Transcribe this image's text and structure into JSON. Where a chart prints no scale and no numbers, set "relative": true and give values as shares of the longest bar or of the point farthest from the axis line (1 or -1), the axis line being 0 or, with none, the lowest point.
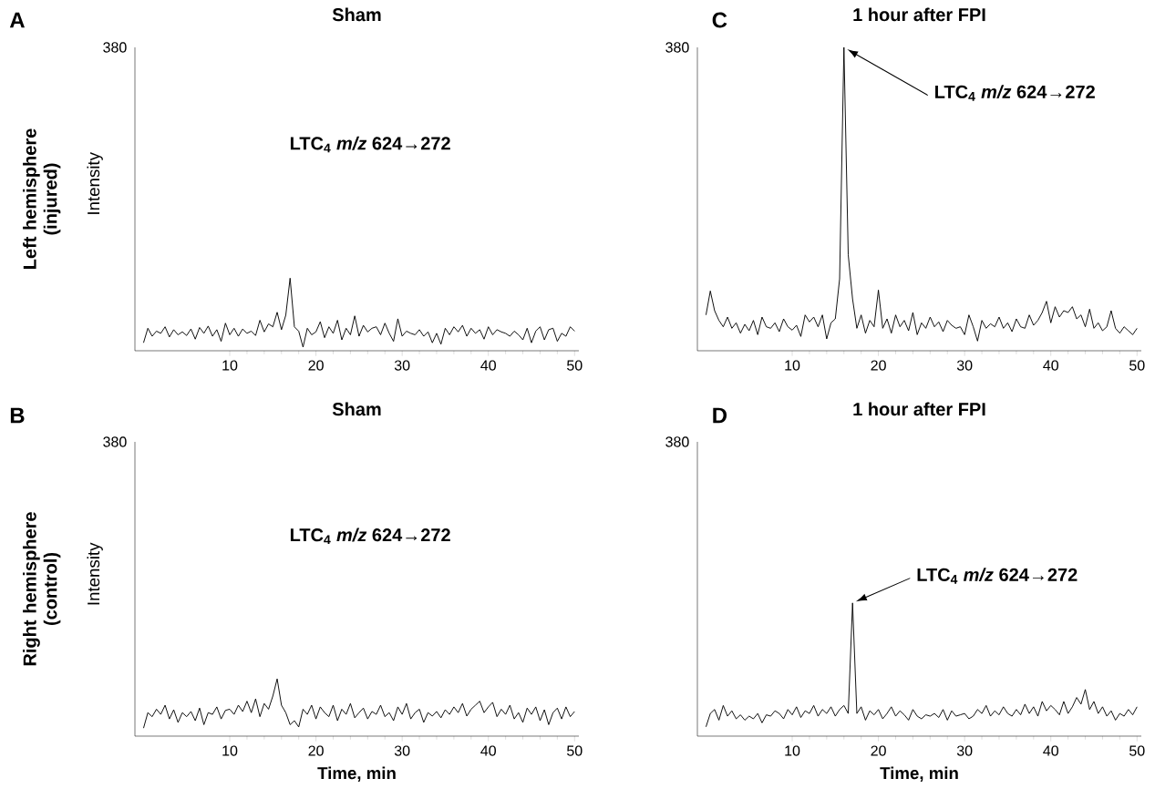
{
  "chart_data": [
    {
      "type": "line",
      "relative": true,
      "title": "Sham",
      "ylabel": "Intensity",
      "annotations": [
        "A",
        "380",
        "Left hemisphere (injured)",
        "LTC$_{4}$ *m/z* 624→272"
      ],
      "color": "#000000",
      "xlim": [
        -1,
        50.5
      ],
      "xticks": [
        10,
        20,
        30,
        40,
        50
      ],
      "x": [
        0,
        0.5,
        1,
        1.5,
        2,
        2.5,
        3,
        3.5,
        4,
        4.5,
        5,
        5.5,
        6,
        6.5,
        7,
        7.5,
        8,
        8.5,
        9,
        9.5,
        10,
        10.5,
        11,
        11.5,
        12,
        12.5,
        13,
        13.5,
        14,
        14.5,
        15,
        15.5,
        16,
        16.5,
        17,
        17.5,
        18,
        18.5,
        19,
        19.5,
        20,
        20.5,
        21,
        21.5,
        22,
        22.5,
        23,
        23.5,
        24,
        24.5,
        25,
        25.5,
        26,
        26.5,
        27,
        27.5,
        28,
        28.5,
        29,
        29.5,
        30,
        30.5,
        31,
        31.5,
        32,
        32.5,
        33,
        33.5,
        34,
        34.5,
        35,
        35.5,
        36,
        36.5,
        37,
        37.5,
        38,
        38.5,
        39,
        39.5,
        40,
        40.5,
        41,
        41.5,
        42,
        42.5,
        43,
        43.5,
        44,
        44.5,
        45,
        45.5,
        46,
        46.5,
        47,
        47.5,
        48,
        48.5,
        49,
        49.5,
        50
      ],
      "values": [
        0.11,
        0.31,
        0.2,
        0.27,
        0.24,
        0.33,
        0.19,
        0.29,
        0.22,
        0.26,
        0.21,
        0.3,
        0.16,
        0.32,
        0.24,
        0.34,
        0.2,
        0.29,
        0.13,
        0.38,
        0.22,
        0.31,
        0.2,
        0.3,
        0.24,
        0.27,
        0.21,
        0.42,
        0.26,
        0.37,
        0.33,
        0.53,
        0.29,
        0.49,
        1,
        0.33,
        0.27,
        0.05,
        0.31,
        0.22,
        0.26,
        0.4,
        0.18,
        0.33,
        0.24,
        0.42,
        0.15,
        0.31,
        0.22,
        0.48,
        0.2,
        0.35,
        0.26,
        0.31,
        0.33,
        0.22,
        0.38,
        0.24,
        0.13,
        0.44,
        0.2,
        0.27,
        0.24,
        0.22,
        0.29,
        0.2,
        0.26,
        0.11,
        0.24,
        0.09,
        0.31,
        0.22,
        0.33,
        0.26,
        0.35,
        0.2,
        0.31,
        0.24,
        0.29,
        0.16,
        0.33,
        0.22,
        0.29,
        0.26,
        0.24,
        0.2,
        0.27,
        0.22,
        0.15,
        0.31,
        0.11,
        0.27,
        0.33,
        0.15,
        0.29,
        0.31,
        0.13,
        0.24,
        0.2,
        0.33,
        0.27
      ]
    },
    {
      "type": "line",
      "relative": true,
      "title": "1 hour after FPI",
      "annotations": [
        "C",
        "380",
        "LTC$_{4}$ *m/z* 624→272"
      ],
      "color": "#000000",
      "xlim": [
        -1,
        50.5
      ],
      "xticks": [
        10,
        20,
        30,
        40,
        50
      ],
      "x": [
        0,
        0.5,
        1,
        1.5,
        2,
        2.5,
        3,
        3.5,
        4,
        4.5,
        5,
        5.5,
        6,
        6.5,
        7,
        7.5,
        8,
        8.5,
        9,
        9.5,
        10,
        10.5,
        11,
        11.5,
        12,
        12.5,
        13,
        13.5,
        14,
        14.5,
        15,
        15.5,
        16,
        16.5,
        17,
        17.5,
        18,
        18.5,
        19,
        19.5,
        20,
        20.5,
        21,
        21.5,
        22,
        22.5,
        23,
        23.5,
        24,
        24.5,
        25,
        25.5,
        26,
        26.5,
        27,
        27.5,
        28,
        28.5,
        29,
        29.5,
        30,
        30.5,
        31,
        31.5,
        32,
        32.5,
        33,
        33.5,
        34,
        34.5,
        35,
        35.5,
        36,
        36.5,
        37,
        37.5,
        38,
        38.5,
        39,
        39.5,
        40,
        40.5,
        41,
        41.5,
        42,
        42.5,
        43,
        43.5,
        44,
        44.5,
        45,
        45.5,
        46,
        46.5,
        47,
        47.5,
        48,
        48.5,
        49,
        49.5,
        50
      ],
      "values": [
        0.118,
        0.197,
        0.132,
        0.1,
        0.079,
        0.111,
        0.074,
        0.092,
        0.058,
        0.087,
        0.066,
        0.1,
        0.053,
        0.111,
        0.079,
        0.074,
        0.092,
        0.063,
        0.105,
        0.079,
        0.068,
        0.084,
        0.047,
        0.118,
        0.095,
        0.111,
        0.079,
        0.118,
        0.039,
        0.092,
        0.105,
        0.237,
        1,
        0.316,
        0.171,
        0.074,
        0.118,
        0.058,
        0.1,
        0.079,
        0.2,
        0.074,
        0.105,
        0.058,
        0.118,
        0.079,
        0.1,
        0.066,
        0.126,
        0.053,
        0.092,
        0.074,
        0.111,
        0.079,
        0.095,
        0.063,
        0.1,
        0.084,
        0.074,
        0.079,
        0.053,
        0.118,
        0.079,
        0.032,
        0.1,
        0.074,
        0.089,
        0.079,
        0.111,
        0.074,
        0.092,
        0.063,
        0.105,
        0.079,
        0.074,
        0.118,
        0.084,
        0.1,
        0.126,
        0.163,
        0.092,
        0.145,
        0.111,
        0.132,
        0.126,
        0.145,
        0.105,
        0.118,
        0.079,
        0.137,
        0.074,
        0.092,
        0.066,
        0.079,
        0.132,
        0.074,
        0.058,
        0.079,
        0.066,
        0.053,
        0.074
      ]
    },
    {
      "type": "line",
      "relative": true,
      "title": "Sham",
      "xlabel": "Time, min",
      "ylabel": "Intensity",
      "annotations": [
        "B",
        "380",
        "Right hemisphere (control)",
        "LTC$_{4}$ *m/z* 624→272"
      ],
      "color": "#000000",
      "xlim": [
        -1,
        50.5
      ],
      "xticks": [
        10,
        20,
        30,
        40,
        50
      ],
      "x": [
        0,
        0.5,
        1,
        1.5,
        2,
        2.5,
        3,
        3.5,
        4,
        4.5,
        5,
        5.5,
        6,
        6.5,
        7,
        7.5,
        8,
        8.5,
        9,
        9.5,
        10,
        10.5,
        11,
        11.5,
        12,
        12.5,
        13,
        13.5,
        14,
        14.5,
        15,
        15.5,
        16,
        16.5,
        17,
        17.5,
        18,
        18.5,
        19,
        19.5,
        20,
        20.5,
        21,
        21.5,
        22,
        22.5,
        23,
        23.5,
        24,
        24.5,
        25,
        25.5,
        26,
        26.5,
        27,
        27.5,
        28,
        28.5,
        29,
        29.5,
        30,
        30.5,
        31,
        31.5,
        32,
        32.5,
        33,
        33.5,
        34,
        34.5,
        35,
        35.5,
        36,
        36.5,
        37,
        37.5,
        38,
        38.5,
        39,
        39.5,
        40,
        40.5,
        41,
        41.5,
        42,
        42.5,
        43,
        43.5,
        44,
        44.5,
        45,
        45.5,
        46,
        46.5,
        47,
        47.5,
        48,
        48.5,
        49,
        49.5,
        50
      ],
      "values": [
        0.14,
        0.41,
        0.34,
        0.47,
        0.38,
        0.54,
        0.3,
        0.46,
        0.24,
        0.41,
        0.34,
        0.43,
        0.27,
        0.49,
        0.2,
        0.41,
        0.38,
        0.51,
        0.3,
        0.45,
        0.47,
        0.38,
        0.54,
        0.43,
        0.61,
        0.41,
        0.65,
        0.34,
        0.57,
        0.47,
        0.7,
        1,
        0.54,
        0.41,
        0.2,
        0.27,
        0.16,
        0.47,
        0.38,
        0.54,
        0.3,
        0.51,
        0.41,
        0.34,
        0.54,
        0.27,
        0.47,
        0.38,
        0.57,
        0.32,
        0.41,
        0.49,
        0.3,
        0.43,
        0.38,
        0.54,
        0.34,
        0.41,
        0.27,
        0.51,
        0.38,
        0.57,
        0.3,
        0.41,
        0.47,
        0.24,
        0.41,
        0.35,
        0.43,
        0.32,
        0.46,
        0.38,
        0.51,
        0.41,
        0.57,
        0.35,
        0.47,
        0.54,
        0.61,
        0.41,
        0.51,
        0.59,
        0.34,
        0.47,
        0.38,
        0.54,
        0.3,
        0.41,
        0.24,
        0.49,
        0.38,
        0.51,
        0.27,
        0.46,
        0.2,
        0.41,
        0.49,
        0.3,
        0.51,
        0.34,
        0.43
      ]
    },
    {
      "type": "line",
      "relative": true,
      "title": "1 hour after FPI",
      "xlabel": "Time, min",
      "annotations": [
        "D",
        "380",
        "LTC$_{4}$ *m/z* 624→272"
      ],
      "color": "#000000",
      "xlim": [
        -1,
        50.5
      ],
      "xticks": [
        10,
        20,
        30,
        40,
        50
      ],
      "x": [
        0,
        0.5,
        1,
        1.5,
        2,
        2.5,
        3,
        3.5,
        4,
        4.5,
        5,
        5.5,
        6,
        6.5,
        7,
        7.5,
        8,
        8.5,
        9,
        9.5,
        10,
        10.5,
        11,
        11.5,
        12,
        12.5,
        13,
        13.5,
        14,
        14.5,
        15,
        15.5,
        16,
        16.5,
        17,
        17.5,
        18,
        18.5,
        19,
        19.5,
        20,
        20.5,
        21,
        21.5,
        22,
        22.5,
        23,
        23.5,
        24,
        24.5,
        25,
        25.5,
        26,
        26.5,
        27,
        27.5,
        28,
        28.5,
        29,
        29.5,
        30,
        30.5,
        31,
        31.5,
        32,
        32.5,
        33,
        33.5,
        34,
        34.5,
        35,
        35.5,
        36,
        36.5,
        37,
        37.5,
        38,
        38.5,
        39,
        39.5,
        40,
        40.5,
        41,
        41.5,
        42,
        42.5,
        43,
        43.5,
        44,
        44.5,
        45,
        45.5,
        46,
        46.5,
        47,
        47.5,
        48,
        48.5,
        49,
        49.5,
        50
      ],
      "values": [
        0.07,
        0.17,
        0.2,
        0.12,
        0.23,
        0.15,
        0.19,
        0.13,
        0.16,
        0.12,
        0.15,
        0.13,
        0.17,
        0.1,
        0.16,
        0.15,
        0.19,
        0.17,
        0.13,
        0.2,
        0.16,
        0.22,
        0.14,
        0.19,
        0.17,
        0.23,
        0.15,
        0.2,
        0.17,
        0.22,
        0.15,
        0.2,
        0.23,
        0.17,
        1,
        0.17,
        0.22,
        0.12,
        0.19,
        0.16,
        0.2,
        0.13,
        0.17,
        0.22,
        0.15,
        0.19,
        0.16,
        0.12,
        0.2,
        0.15,
        0.13,
        0.16,
        0.15,
        0.17,
        0.14,
        0.2,
        0.12,
        0.19,
        0.15,
        0.16,
        0.17,
        0.13,
        0.15,
        0.2,
        0.17,
        0.23,
        0.15,
        0.19,
        0.16,
        0.22,
        0.17,
        0.15,
        0.2,
        0.16,
        0.24,
        0.17,
        0.22,
        0.15,
        0.26,
        0.19,
        0.23,
        0.2,
        0.16,
        0.26,
        0.17,
        0.22,
        0.29,
        0.24,
        0.35,
        0.2,
        0.26,
        0.17,
        0.22,
        0.15,
        0.19,
        0.12,
        0.17,
        0.15,
        0.2,
        0.16,
        0.22
      ]
    }
  ]
}
